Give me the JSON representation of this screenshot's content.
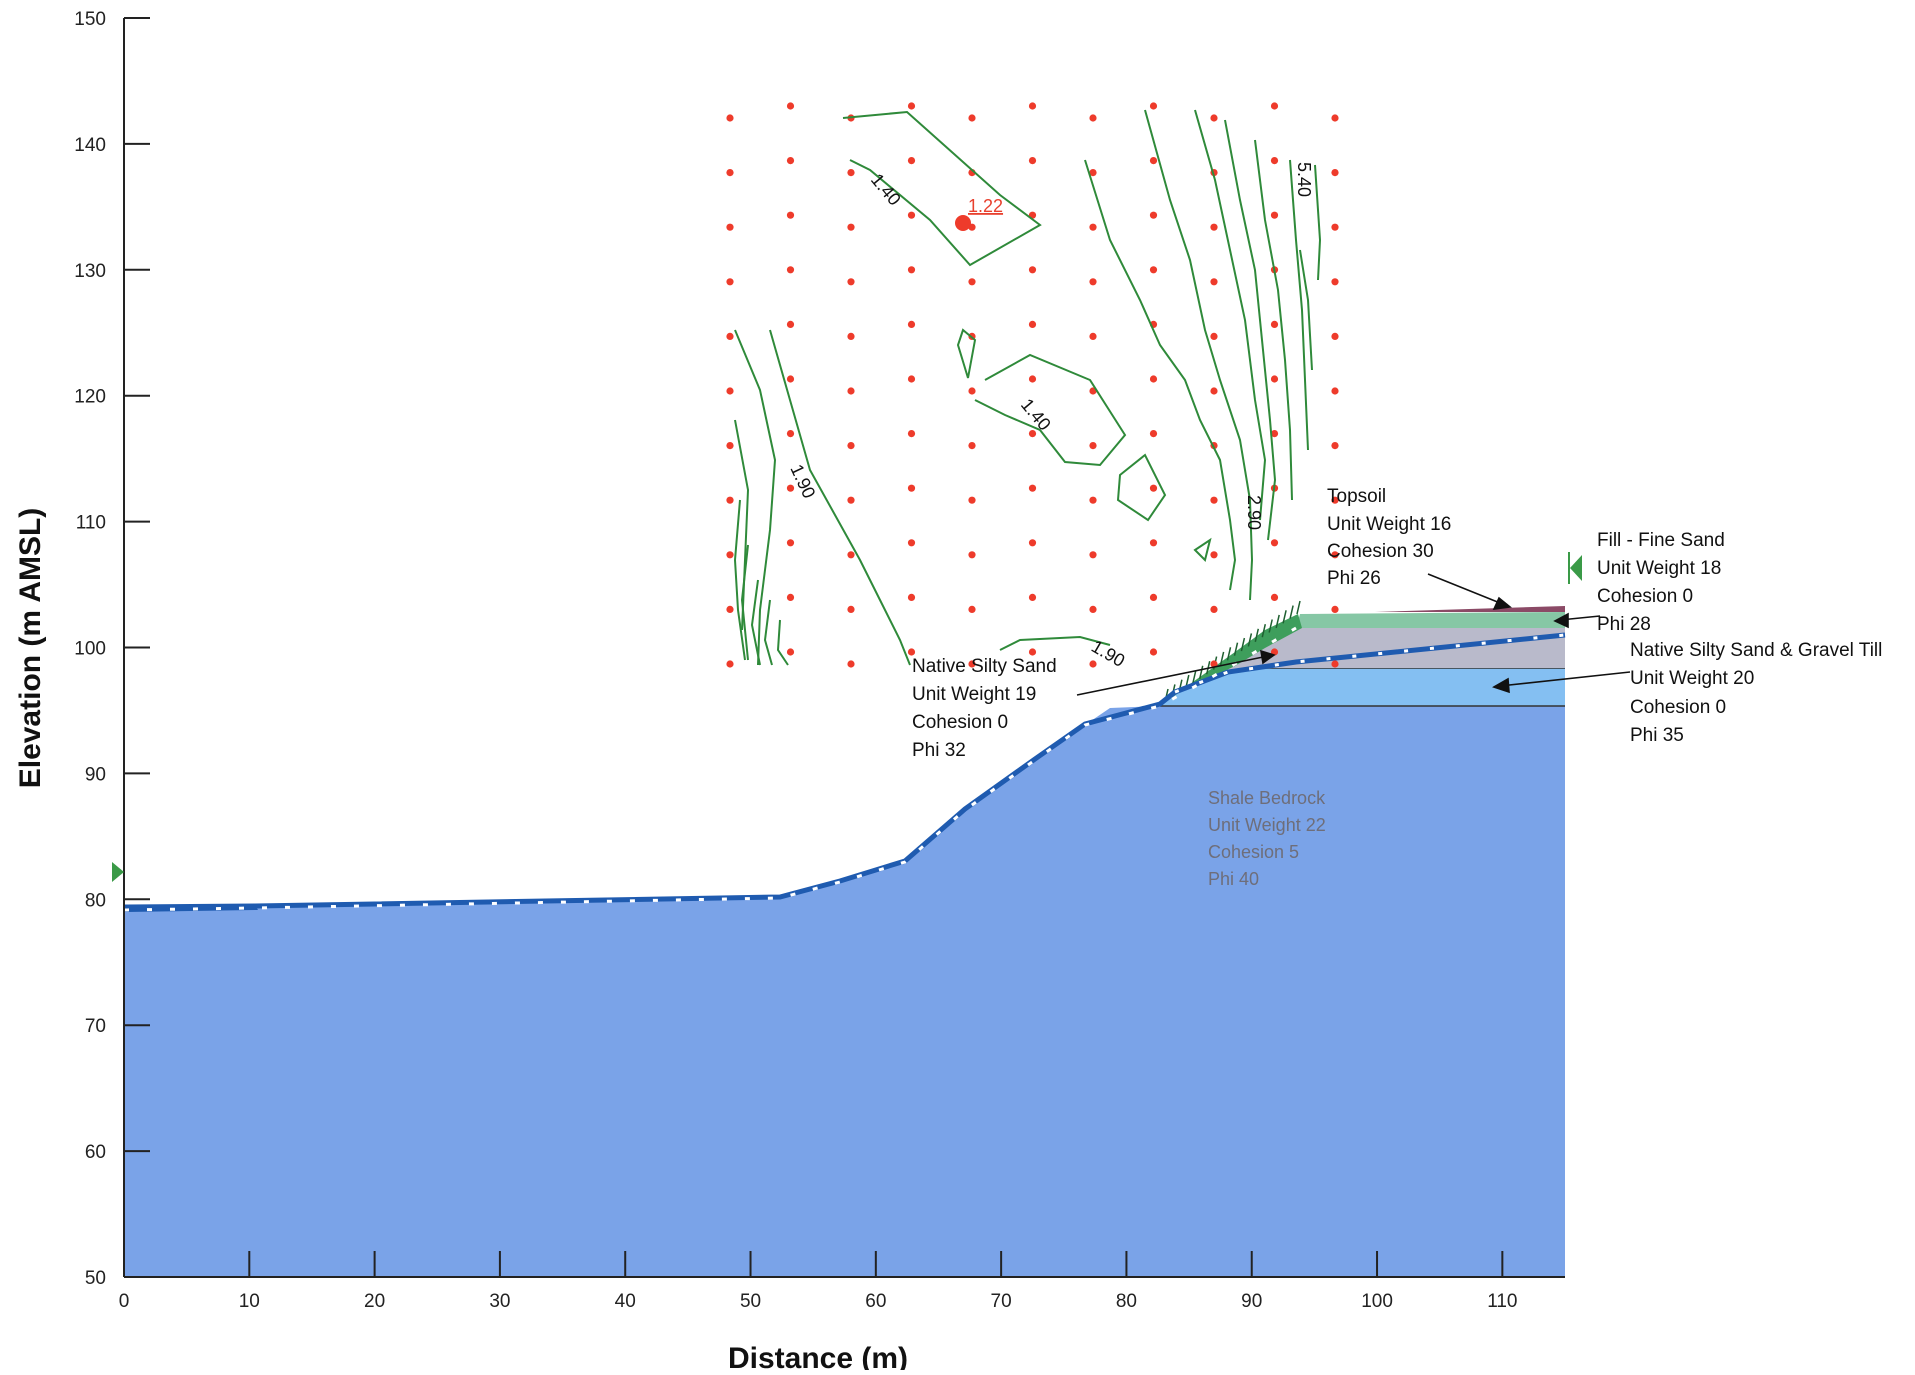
{
  "axes": {
    "x_title": "Distance (m)",
    "y_title": "Elevation (m AMSL)",
    "x_ticks": [
      "0",
      "10",
      "20",
      "30",
      "40",
      "50",
      "60",
      "70",
      "80",
      "90",
      "100",
      "110"
    ],
    "y_ticks": [
      "50",
      "60",
      "70",
      "80",
      "90",
      "100",
      "110",
      "120",
      "130",
      "140",
      "150"
    ],
    "x_range": [
      0,
      115
    ],
    "y_range": [
      50,
      150
    ]
  },
  "colors": {
    "bedrock": "#7aa3e8",
    "till": "#84bff2",
    "fill_sand": "#b9bacb",
    "topsoil_band": "#86c7a5",
    "topsoil_strip": "#8b4a66",
    "native_sand_wedge": "#3e9e5c",
    "water_table": "#1f5bb0",
    "grid_dot": "#ee3b2b",
    "contour": "#2f8a3a"
  },
  "materials": {
    "topsoil": [
      "Topsoil",
      "Unit Weight 16",
      "Cohesion 30",
      "Phi 26"
    ],
    "fill_sand": [
      "Fill - Fine Sand",
      "Unit Weight 18",
      "Cohesion 0",
      "Phi 28"
    ],
    "till": [
      "Native Silty Sand & Gravel Till",
      "Unit Weight 20",
      "Cohesion 0",
      "Phi 35"
    ],
    "native_sand": [
      "Native Silty Sand",
      "Unit Weight 19",
      "Cohesion 0",
      "Phi 32"
    ],
    "bedrock": [
      "Shale Bedrock",
      "Unit Weight 22",
      "Cohesion 5",
      "Phi 40"
    ]
  },
  "contours": {
    "labels": [
      "1.40",
      "1.22",
      "1.40",
      "1.90",
      "2.90",
      "5.40",
      "1.90"
    ]
  }
}
